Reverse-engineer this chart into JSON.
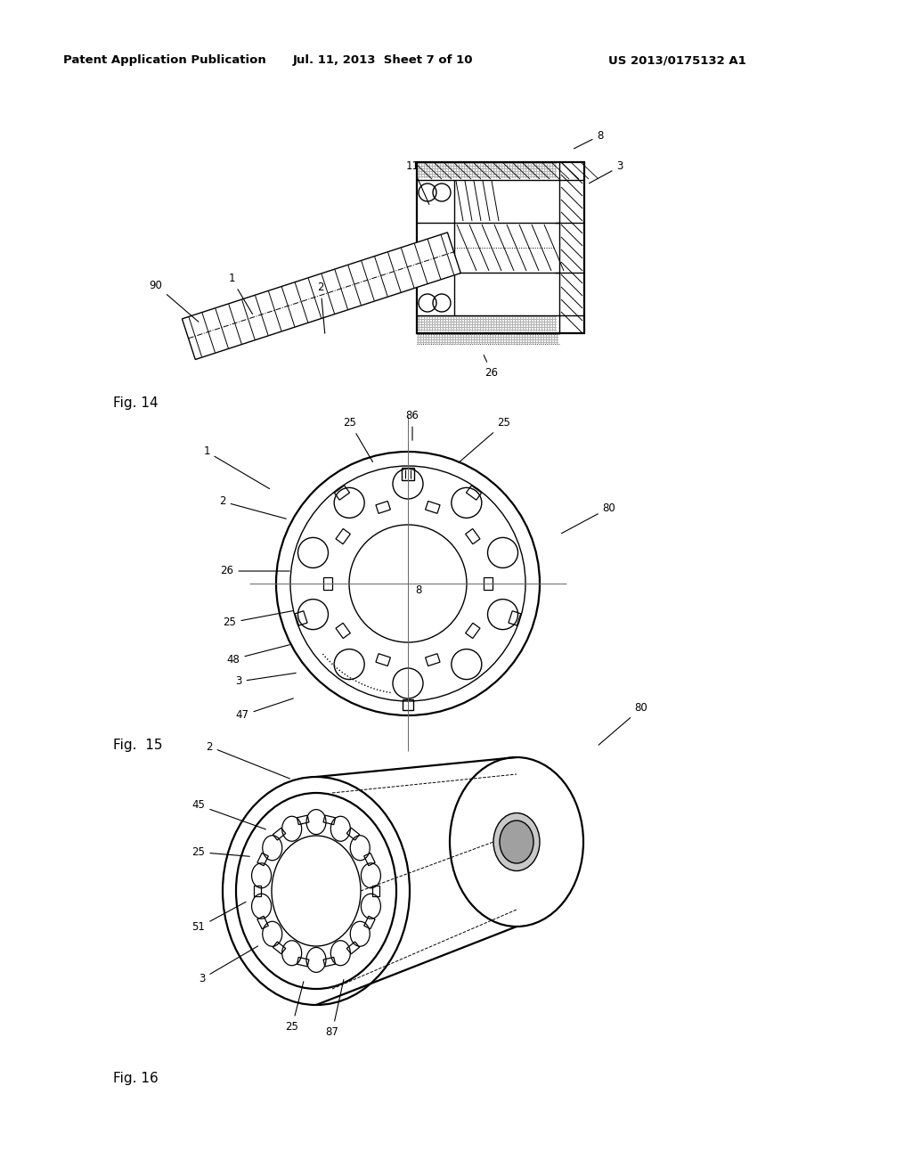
{
  "background_color": "#ffffff",
  "header_left": "Patent Application Publication",
  "header_mid": "Jul. 11, 2013  Sheet 7 of 10",
  "header_right": "US 2013/0175132 A1",
  "fig14_label": "Fig. 14",
  "fig15_label": "Fig.  15",
  "fig16_label": "Fig. 16",
  "line_color": "#000000"
}
